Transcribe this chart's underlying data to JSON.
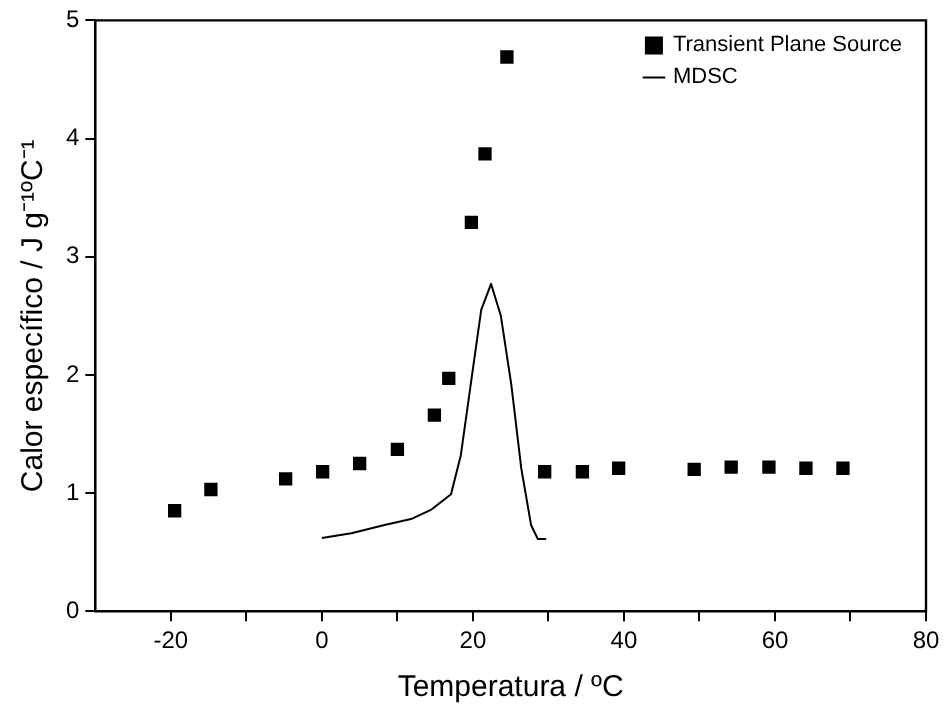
{
  "chart_data": {
    "type": "scatter",
    "xlabel": "Temperatura / ºC",
    "ylabel": "Calor específico / J g⁻¹ºC⁻¹",
    "xlim": [
      -30,
      80
    ],
    "xticks": [
      -20,
      {
        "value": -10,
        "label": null
      },
      0,
      {
        "value": 10,
        "label": null
      },
      20,
      {
        "value": 30,
        "label": null
      },
      40,
      {
        "value": 50,
        "label": null
      },
      60,
      {
        "value": 70,
        "label": null
      },
      80
    ],
    "ylim": [
      0,
      5
    ],
    "yticks": [
      0,
      1,
      2,
      3,
      4,
      5
    ],
    "grid": false,
    "legend": "top right",
    "series": [
      {
        "name": "Transient Plane Source",
        "type": "scatter",
        "marker": "square",
        "color": "#000000",
        "x": [
          -19.5,
          -14.7,
          -4.8,
          0.1,
          5.0,
          10.0,
          14.9,
          16.8,
          19.8,
          21.6,
          24.5,
          29.5,
          34.5,
          39.3,
          49.3,
          54.2,
          59.2,
          64.1,
          69.0
        ],
        "values": [
          0.85,
          1.03,
          1.12,
          1.18,
          1.25,
          1.37,
          1.66,
          1.97,
          3.29,
          3.87,
          4.69,
          1.18,
          1.18,
          1.21,
          1.2,
          1.22,
          1.22,
          1.21,
          1.21
        ]
      },
      {
        "name": "MDSC",
        "type": "line",
        "marker": "none",
        "line_style": "solid",
        "color": "#000000",
        "x": [
          0,
          3.9,
          8.3,
          11.8,
          14.5,
          17.1,
          18.4,
          19.8,
          21.1,
          22.4,
          23.7,
          25.1,
          26.4,
          27.7,
          28.6,
          29.7
        ],
        "values": [
          0.62,
          0.66,
          0.73,
          0.78,
          0.86,
          0.99,
          1.32,
          1.96,
          2.55,
          2.77,
          2.5,
          1.91,
          1.21,
          0.73,
          0.61,
          0.61
        ]
      }
    ]
  }
}
